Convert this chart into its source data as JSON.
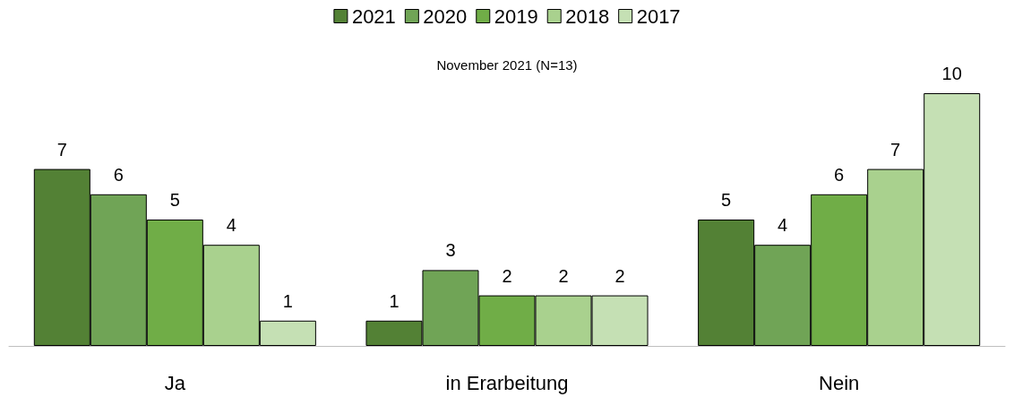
{
  "chart_data": {
    "type": "bar",
    "subtitle": "November 2021 (N=13)",
    "categories": [
      "Ja",
      "in Erarbeitung",
      "Nein"
    ],
    "series": [
      {
        "name": "2021",
        "color": "#538135",
        "values": [
          7,
          1,
          5
        ]
      },
      {
        "name": "2020",
        "color": "#70a456",
        "values": [
          6,
          3,
          4
        ]
      },
      {
        "name": "2019",
        "color": "#70ad47",
        "values": [
          5,
          2,
          6
        ]
      },
      {
        "name": "2018",
        "color": "#a9d18e",
        "values": [
          4,
          2,
          7
        ]
      },
      {
        "name": "2017",
        "color": "#c5e0b4",
        "values": [
          1,
          2,
          10
        ]
      }
    ],
    "data_labels": true,
    "legend": "top"
  }
}
